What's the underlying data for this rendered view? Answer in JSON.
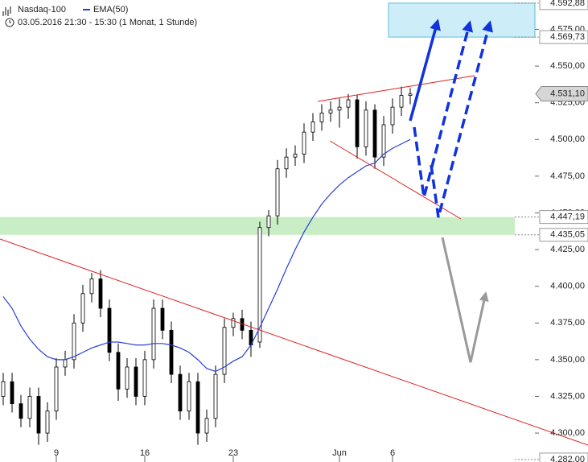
{
  "chart_data": {
    "type": "candlestick",
    "title": "Nasdaq-100",
    "subtitle": "03.05.2016 21:30 - 15:30 (1 Monat, 1 Stunde)",
    "categories": [
      null,
      null,
      null,
      null,
      null,
      null,
      "9",
      null,
      null,
      null,
      null,
      null,
      null,
      null,
      null,
      null,
      "16",
      null,
      null,
      null,
      null,
      null,
      null,
      null,
      null,
      null,
      "23",
      null,
      null,
      null,
      null,
      null,
      null,
      null,
      null,
      null,
      null,
      null,
      "Jun",
      null,
      null,
      null,
      null,
      null,
      "6",
      null,
      null
    ],
    "open": [
      4325,
      4335,
      4320,
      4310,
      4325,
      4300,
      4315,
      4345,
      4350,
      4375,
      4395,
      4405,
      4385,
      4355,
      4330,
      4345,
      4325,
      4350,
      4385,
      4370,
      4340,
      4315,
      4335,
      4300,
      4310,
      4340,
      4372,
      4378,
      4370,
      4362,
      4440,
      4448,
      4480,
      4488,
      4490,
      4505,
      4512,
      4518,
      4520,
      4522,
      4527,
      4495,
      4520,
      4488,
      4510,
      4522,
      4530
    ],
    "high": [
      4341,
      4341,
      4326,
      4331,
      4331,
      4321,
      4351,
      4356,
      4381,
      4401,
      4409,
      4411,
      4391,
      4361,
      4351,
      4351,
      4356,
      4391,
      4391,
      4376,
      4346,
      4341,
      4341,
      4316,
      4346,
      4378,
      4382,
      4384,
      4376,
      4444,
      4452,
      4486,
      4494,
      4496,
      4511,
      4518,
      4524,
      4526,
      4528,
      4531,
      4530,
      4526,
      4524,
      4516,
      4528,
      4536,
      4535
    ],
    "low": [
      4319,
      4314,
      4304,
      4304,
      4292,
      4294,
      4309,
      4339,
      4344,
      4369,
      4389,
      4379,
      4349,
      4322,
      4324,
      4319,
      4319,
      4344,
      4364,
      4334,
      4309,
      4309,
      4292,
      4294,
      4304,
      4334,
      4366,
      4364,
      4352,
      4358,
      4434,
      4442,
      4474,
      4482,
      4484,
      4499,
      4506,
      4512,
      4508,
      4514,
      4487,
      4489,
      4480,
      4482,
      4504,
      4516,
      4524
    ],
    "close": [
      4335,
      4320,
      4310,
      4325,
      4300,
      4315,
      4345,
      4350,
      4375,
      4395,
      4405,
      4385,
      4355,
      4330,
      4345,
      4325,
      4350,
      4385,
      4370,
      4340,
      4315,
      4335,
      4300,
      4310,
      4340,
      4372,
      4378,
      4370,
      4360,
      4440,
      4448,
      4480,
      4488,
      4490,
      4505,
      4512,
      4518,
      4520,
      4522,
      4527,
      4495,
      4520,
      4488,
      4510,
      4522,
      4530,
      4531
    ],
    "series": [
      {
        "name": "EMA(50)",
        "color": "#2a3fd6",
        "values": [
          4393,
          4385,
          4373,
          4364,
          4357,
          4352,
          4350,
          4350,
          4352,
          4355,
          4358,
          4360,
          4362,
          4362,
          4361,
          4360,
          4360,
          4361,
          4361,
          4360,
          4358,
          4355,
          4350,
          4344,
          4342,
          4345,
          4349,
          4352,
          4360,
          4372,
          4385,
          4398,
          4412,
          4425,
          4437,
          4447,
          4456,
          4463,
          4469,
          4474,
          4478,
          4482,
          4484,
          4490,
          4494,
          4497,
          4500
        ]
      }
    ],
    "ylim": [
      4280.3,
      4595
    ],
    "yticks": [
      {
        "value": 4300,
        "label": "4.300,00"
      },
      {
        "value": 4325,
        "label": "4.325,00"
      },
      {
        "value": 4350,
        "label": "4.350,00"
      },
      {
        "value": 4375,
        "label": "4.375,00"
      },
      {
        "value": 4400,
        "label": "4.400,00"
      },
      {
        "value": 4425,
        "label": "4.425,00"
      },
      {
        "value": 4450,
        "label": "4.450,00"
      },
      {
        "value": 4475,
        "label": "4.475,00"
      },
      {
        "value": 4500,
        "label": "4.500,00"
      },
      {
        "value": 4525,
        "label": "4.525,00"
      },
      {
        "value": 4550,
        "label": "4.550,00"
      },
      {
        "value": 4575,
        "label": "4.575,00"
      }
    ],
    "levels": [
      {
        "value": 4592.88,
        "label": "4.592,88"
      },
      {
        "value": 4569.73,
        "label": "4.569,73"
      },
      {
        "value": 4447.19,
        "label": "4.447,19"
      },
      {
        "value": 4435.05,
        "label": "4.435,05"
      },
      {
        "value": 4282,
        "label": "4.282,00"
      }
    ],
    "last_price": {
      "value": 4531.1,
      "label": "4.531,10"
    },
    "zone_colors": [
      "#cdeef8",
      "#c9eec5"
    ]
  }
}
